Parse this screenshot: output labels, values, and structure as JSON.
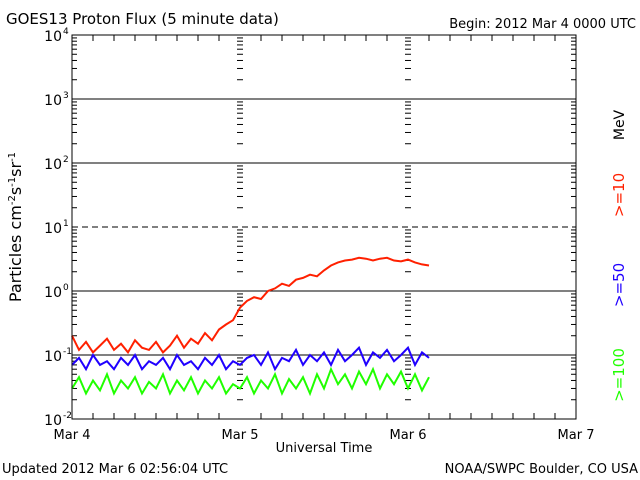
{
  "header": {
    "title": "GOES13 Proton Flux (5 minute data)",
    "begin": "Begin: 2012 Mar 4 0000 UTC"
  },
  "footer": {
    "updated": "Updated 2012 Mar  6 02:56:04 UTC",
    "source": "NOAA/SWPC Boulder, CO USA"
  },
  "chart_data": {
    "type": "line",
    "title": "GOES13 Proton Flux (5 minute data)",
    "xlabel": "Universal Time",
    "ylabel": "Particles cm-2 s-1 sr-1",
    "yscale": "log",
    "ylim": [
      0.01,
      10000
    ],
    "xlim_hours": [
      0,
      72
    ],
    "x_unit": "hours since 2012 Mar 4 0000 UTC",
    "x_ticks": [
      {
        "h": 0,
        "label": "Mar 4"
      },
      {
        "h": 24,
        "label": "Mar 5"
      },
      {
        "h": 48,
        "label": "Mar 6"
      },
      {
        "h": 72,
        "label": "Mar 7"
      }
    ],
    "y_ticks": [
      {
        "exp": 4,
        "label": "10",
        "sup": "4"
      },
      {
        "exp": 3,
        "label": "10",
        "sup": "3"
      },
      {
        "exp": 2,
        "label": "10",
        "sup": "2"
      },
      {
        "exp": 1,
        "label": "10",
        "sup": "1"
      },
      {
        "exp": 0,
        "label": "10",
        "sup": "0"
      },
      {
        "exp": -1,
        "label": "10",
        "sup": "-1"
      },
      {
        "exp": -2,
        "label": "10",
        "sup": "-2"
      }
    ],
    "grid": true,
    "units_label": "MeV",
    "legend_placement": "right",
    "series": [
      {
        "name": ">=10",
        "color": "#ff2000",
        "x": "hourly 0-51",
        "values": [
          0.2,
          0.12,
          0.16,
          0.11,
          0.14,
          0.18,
          0.12,
          0.15,
          0.11,
          0.17,
          0.13,
          0.12,
          0.16,
          0.11,
          0.14,
          0.2,
          0.13,
          0.18,
          0.15,
          0.22,
          0.17,
          0.25,
          0.3,
          0.35,
          0.55,
          0.7,
          0.8,
          0.75,
          1.0,
          1.1,
          1.3,
          1.2,
          1.5,
          1.6,
          1.8,
          1.7,
          2.1,
          2.5,
          2.8,
          3.0,
          3.1,
          3.3,
          3.2,
          3.0,
          3.2,
          3.3,
          3.0,
          2.9,
          3.1,
          2.8,
          2.6,
          2.5
        ]
      },
      {
        "name": ">=50",
        "color": "#2000ff",
        "x": "hourly 0-51",
        "values": [
          0.07,
          0.09,
          0.06,
          0.1,
          0.07,
          0.08,
          0.06,
          0.09,
          0.07,
          0.1,
          0.06,
          0.08,
          0.07,
          0.09,
          0.06,
          0.1,
          0.07,
          0.08,
          0.06,
          0.09,
          0.07,
          0.1,
          0.06,
          0.08,
          0.07,
          0.09,
          0.1,
          0.07,
          0.11,
          0.06,
          0.09,
          0.08,
          0.12,
          0.07,
          0.1,
          0.08,
          0.11,
          0.07,
          0.12,
          0.08,
          0.1,
          0.13,
          0.07,
          0.11,
          0.09,
          0.12,
          0.08,
          0.1,
          0.13,
          0.07,
          0.11,
          0.09
        ]
      },
      {
        "name": ">=100",
        "color": "#20ff00",
        "x": "hourly 0-51",
        "values": [
          0.03,
          0.045,
          0.025,
          0.04,
          0.028,
          0.05,
          0.025,
          0.04,
          0.03,
          0.045,
          0.025,
          0.038,
          0.03,
          0.05,
          0.025,
          0.04,
          0.028,
          0.045,
          0.025,
          0.04,
          0.03,
          0.045,
          0.025,
          0.035,
          0.03,
          0.045,
          0.025,
          0.04,
          0.03,
          0.05,
          0.025,
          0.042,
          0.03,
          0.045,
          0.025,
          0.05,
          0.03,
          0.06,
          0.035,
          0.05,
          0.03,
          0.055,
          0.035,
          0.06,
          0.03,
          0.05,
          0.035,
          0.055,
          0.03,
          0.05,
          0.028,
          0.045
        ]
      }
    ]
  }
}
